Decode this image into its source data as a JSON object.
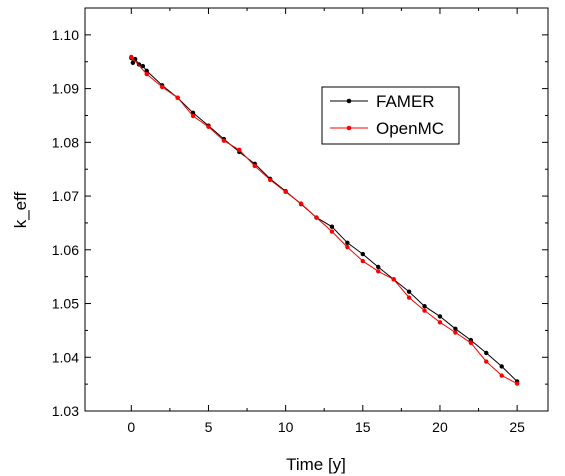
{
  "chart_data": {
    "type": "line",
    "xlabel": "Time [y]",
    "ylabel": "k_eff",
    "xlim": [
      -3,
      27
    ],
    "ylim": [
      1.03,
      1.105
    ],
    "xticks": [
      0,
      5,
      10,
      15,
      20,
      25
    ],
    "yticks": [
      1.03,
      1.04,
      1.05,
      1.06,
      1.07,
      1.08,
      1.09,
      1.1
    ],
    "xtick_labels": [
      "0",
      "5",
      "10",
      "15",
      "20",
      "25"
    ],
    "ytick_labels": [
      "1.03",
      "1.04",
      "1.05",
      "1.06",
      "1.07",
      "1.08",
      "1.09",
      "1.10"
    ],
    "grid": false,
    "legend_position": "upper-right-center",
    "series": [
      {
        "name": "FAMER",
        "color": "#000000",
        "x": [
          0,
          0.1,
          0.25,
          0.5,
          0.75,
          1,
          2,
          3,
          4,
          5,
          6,
          7,
          8,
          9,
          10,
          11,
          12,
          13,
          14,
          15,
          16,
          17,
          18,
          19,
          20,
          21,
          22,
          23,
          24,
          25
        ],
        "y": [
          1.0957,
          1.0948,
          1.0955,
          1.0945,
          1.0942,
          1.0933,
          1.0906,
          1.0883,
          1.0855,
          1.0831,
          1.0806,
          1.0782,
          1.076,
          1.0732,
          1.0709,
          1.0685,
          1.066,
          1.0643,
          1.0613,
          1.0592,
          1.0568,
          1.0545,
          1.0522,
          1.0495,
          1.0476,
          1.0453,
          1.0432,
          1.0408,
          1.0383,
          1.0355
        ]
      },
      {
        "name": "OpenMC",
        "color": "#ff0000",
        "x": [
          0,
          1,
          2,
          3,
          4,
          5,
          6,
          7,
          8,
          9,
          10,
          11,
          12,
          13,
          14,
          15,
          16,
          17,
          18,
          19,
          20,
          21,
          22,
          23,
          24,
          25
        ],
        "y": [
          1.0959,
          1.0927,
          1.0903,
          1.0883,
          1.0849,
          1.0829,
          1.0803,
          1.0786,
          1.0756,
          1.073,
          1.0708,
          1.0686,
          1.066,
          1.0634,
          1.0605,
          1.0579,
          1.056,
          1.0545,
          1.0511,
          1.0487,
          1.0465,
          1.0446,
          1.0427,
          1.0392,
          1.0366,
          1.0351
        ]
      }
    ]
  }
}
